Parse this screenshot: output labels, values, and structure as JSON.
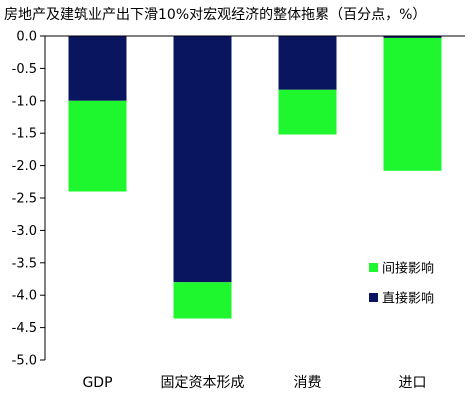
{
  "chart_data": {
    "type": "bar",
    "stacked": true,
    "title": "房地产及建筑业产出下滑10%对宏观经济的整体拖累（百分点，%）",
    "xlabel": "",
    "ylabel": "",
    "ylim": [
      -5.0,
      0.0
    ],
    "yticks": [
      "0.0",
      "-0.5",
      "-1.0",
      "-1.5",
      "-2.0",
      "-2.5",
      "-3.0",
      "-3.5",
      "-4.0",
      "-4.5",
      "-5.0"
    ],
    "grid": false,
    "legend_position": "bottom-right",
    "categories": [
      "GDP",
      "固定资本形成",
      "消费",
      "进口"
    ],
    "series": [
      {
        "name": "直接影响",
        "color": "#0a1560",
        "values": [
          -1.0,
          -3.8,
          -0.83,
          -0.03
        ]
      },
      {
        "name": "间接影响",
        "color": "#1ef72e",
        "values": [
          -1.4,
          -0.56,
          -0.69,
          -2.05
        ]
      }
    ],
    "legend_order": [
      "间接影响",
      "直接影响"
    ]
  }
}
